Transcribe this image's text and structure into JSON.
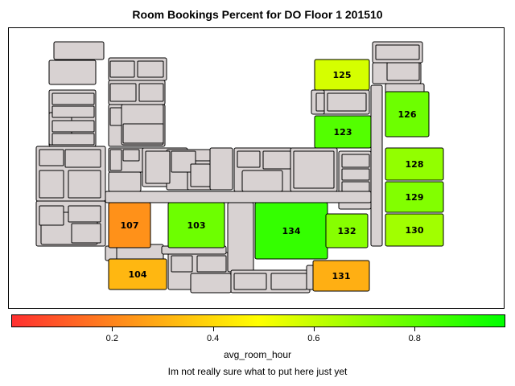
{
  "chart_data": {
    "type": "heatmap",
    "title": "Room Bookings Percent for DO Floor 1 201510",
    "colorbar_label": "avg_room_hour",
    "footnote": "Im not really sure what to put here just yet",
    "scale": {
      "min": 0.0,
      "max": 0.98,
      "ticks": [
        0.2,
        0.4,
        0.6,
        0.8
      ],
      "tick_labels": [
        "0.2",
        "0.4",
        "0.6",
        "0.8"
      ],
      "colors": [
        "#ff3030",
        "#ffff00",
        "#00ff00"
      ]
    },
    "rooms": [
      {
        "room": "125",
        "value": 0.57
      },
      {
        "room": "126",
        "value": 0.77
      },
      {
        "room": "123",
        "value": 0.82
      },
      {
        "room": "128",
        "value": 0.7
      },
      {
        "room": "129",
        "value": 0.73
      },
      {
        "room": "130",
        "value": 0.67
      },
      {
        "room": "107",
        "value": 0.23
      },
      {
        "room": "103",
        "value": 0.77
      },
      {
        "room": "134",
        "value": 0.88
      },
      {
        "room": "132",
        "value": 0.72
      },
      {
        "room": "104",
        "value": 0.32
      },
      {
        "room": "131",
        "value": 0.3
      }
    ]
  }
}
